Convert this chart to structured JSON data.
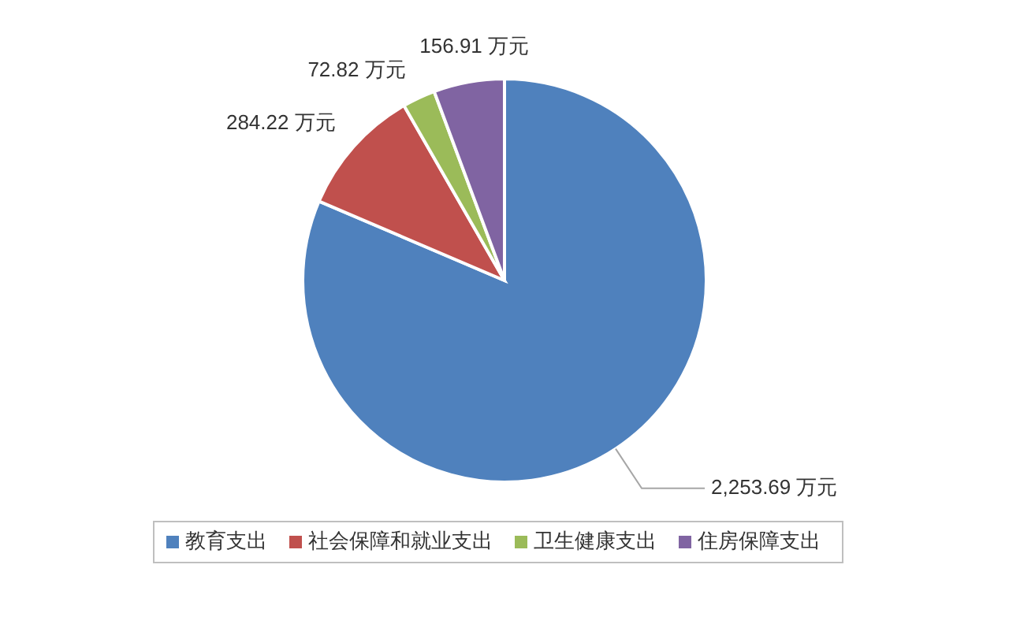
{
  "chart_data": {
    "type": "pie",
    "categories": [
      "教育支出",
      "社会保障和就业支出",
      "卫生健康支出",
      "住房保障支出"
    ],
    "values": [
      2253.69,
      284.22,
      72.82,
      156.91
    ],
    "colors": [
      "#4f81bd",
      "#c0504d",
      "#9bbb59",
      "#8064a2"
    ],
    "value_labels": [
      "2,253.69 万元",
      "284.22 万元",
      "72.82 万元",
      "156.91 万元"
    ],
    "legend": "bottom"
  }
}
